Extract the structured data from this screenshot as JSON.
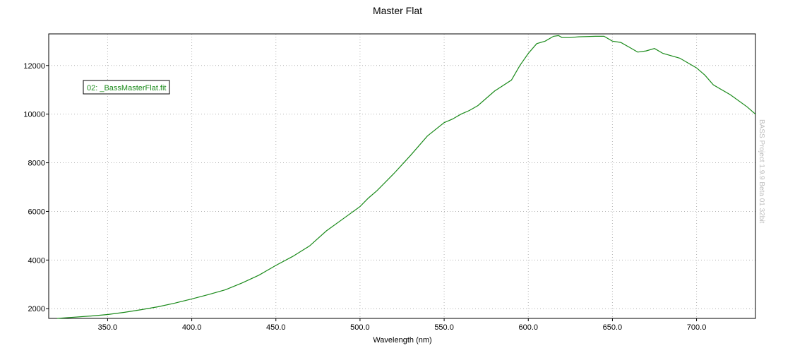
{
  "chart_data": {
    "type": "line",
    "title": "Master Flat",
    "xlabel": "Wavelength (nm)",
    "ylabel": "",
    "xlim": [
      315,
      735
    ],
    "ylim": [
      1600,
      13300
    ],
    "xticks": [
      350,
      400,
      450,
      500,
      550,
      600,
      650,
      700
    ],
    "xtick_labels": [
      "350.0",
      "400.0",
      "450.0",
      "500.0",
      "550.0",
      "600.0",
      "650.0",
      "700.0"
    ],
    "yticks": [
      2000,
      4000,
      6000,
      8000,
      10000,
      12000
    ],
    "ytick_labels": [
      "2000",
      "4000",
      "6000",
      "8000",
      "10000",
      "12000"
    ],
    "grid": true,
    "legend_position": "top-left",
    "watermark": "BASS Project 1.9.9 Beta 01 32bit",
    "series": [
      {
        "name": "02: _BassMasterFlat.fit",
        "color": "#1a8a1a",
        "x": [
          320,
          330,
          340,
          350,
          360,
          370,
          380,
          390,
          400,
          410,
          420,
          430,
          440,
          450,
          460,
          470,
          480,
          490,
          500,
          505,
          510,
          520,
          530,
          540,
          550,
          555,
          560,
          565,
          570,
          580,
          590,
          595,
          600,
          605,
          610,
          615,
          618,
          620,
          625,
          630,
          640,
          645,
          650,
          655,
          660,
          665,
          670,
          675,
          680,
          690,
          700,
          705,
          710,
          720,
          730,
          735
        ],
        "values": [
          1600,
          1650,
          1700,
          1760,
          1850,
          1960,
          2080,
          2230,
          2400,
          2580,
          2780,
          3060,
          3380,
          3780,
          4150,
          4580,
          5200,
          5700,
          6200,
          6550,
          6850,
          7550,
          8300,
          9100,
          9650,
          9800,
          10000,
          10150,
          10350,
          10950,
          11400,
          12000,
          12500,
          12900,
          13000,
          13200,
          13230,
          13150,
          13150,
          13180,
          13200,
          13200,
          13000,
          12950,
          12750,
          12550,
          12600,
          12700,
          12500,
          12300,
          11900,
          11600,
          11200,
          10800,
          10300,
          10000
        ]
      }
    ]
  }
}
